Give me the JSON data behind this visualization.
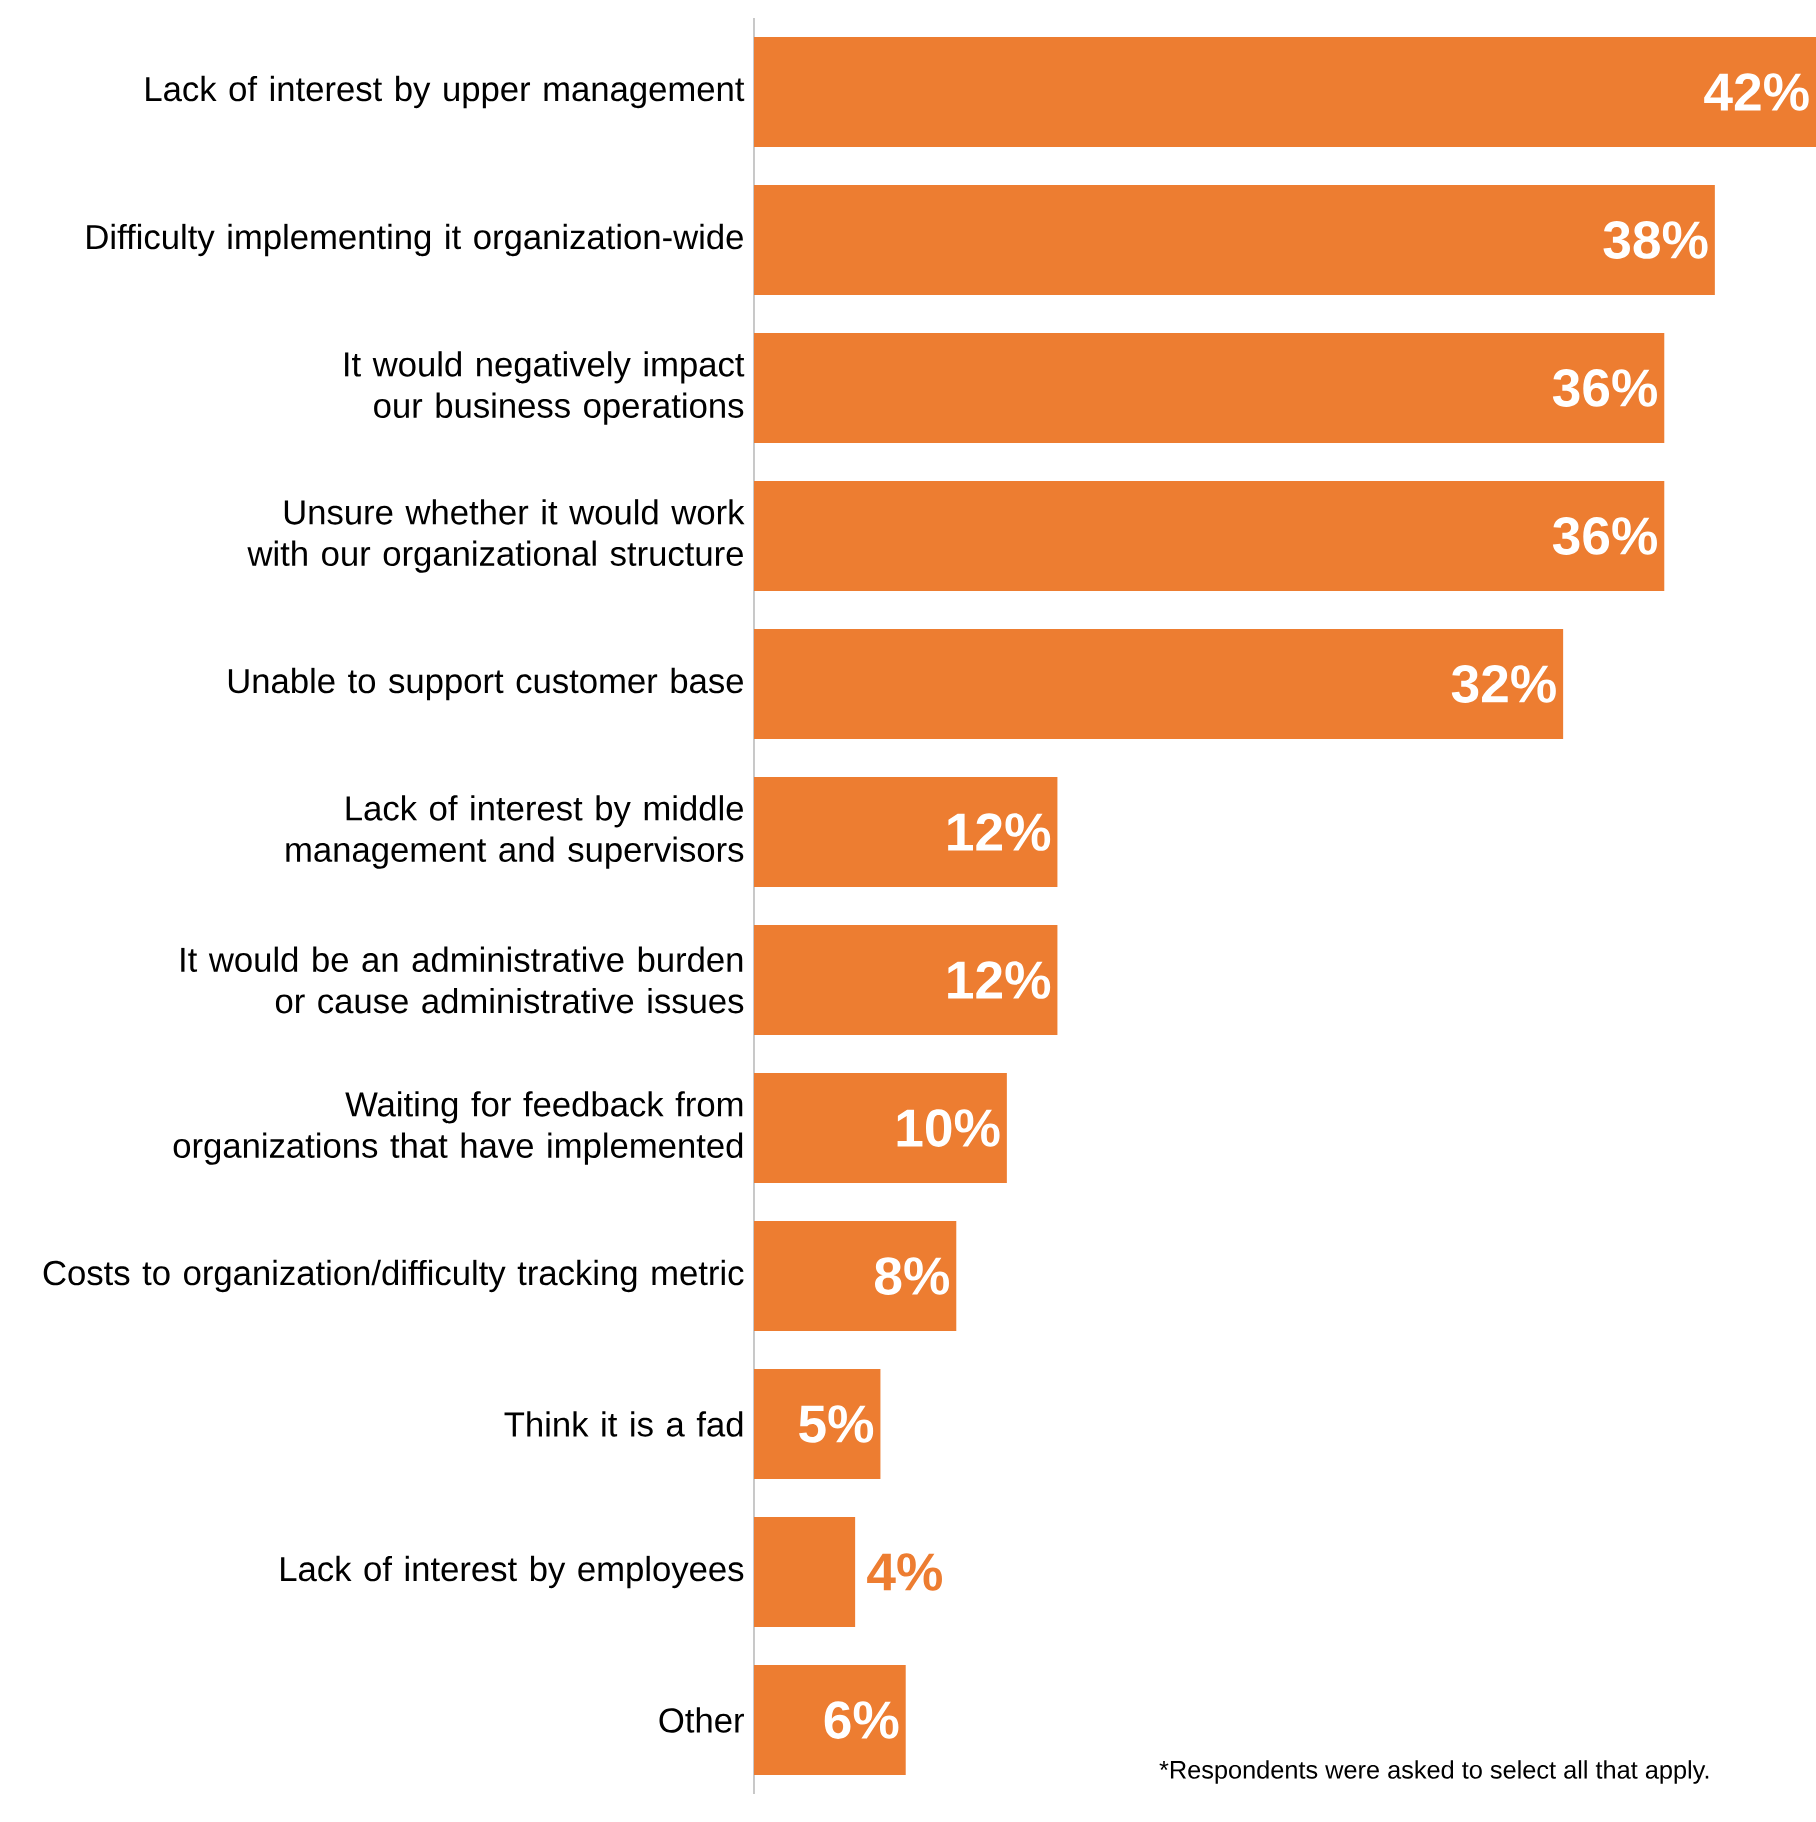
{
  "chart_data": {
    "type": "bar",
    "orientation": "horizontal",
    "categories": [
      "Lack of interest by upper management",
      "Difficulty implementing it organization-wide",
      "It would negatively impact our business operations",
      "Unsure whether it would work with our organizational structure",
      "Unable to support customer base",
      "Lack of interest by middle management and supervisors",
      "It would be an administrative burden or cause administrative issues",
      "Waiting for feedback from organizations that have implemented",
      "Costs to organization/difficulty tracking metric",
      "Think it is a fad",
      "Lack of interest by employees",
      "Other"
    ],
    "values": [
      42,
      38,
      36,
      36,
      32,
      12,
      12,
      10,
      8,
      5,
      4,
      6
    ],
    "value_labels": [
      "42%",
      "38%",
      "36%",
      "36%",
      "32%",
      "12%",
      "12%",
      "10%",
      "8%",
      "5%",
      "4%",
      "6%"
    ],
    "color": "#ed7d31",
    "annotations": [
      "*Respondents were asked to select all that apply."
    ]
  }
}
